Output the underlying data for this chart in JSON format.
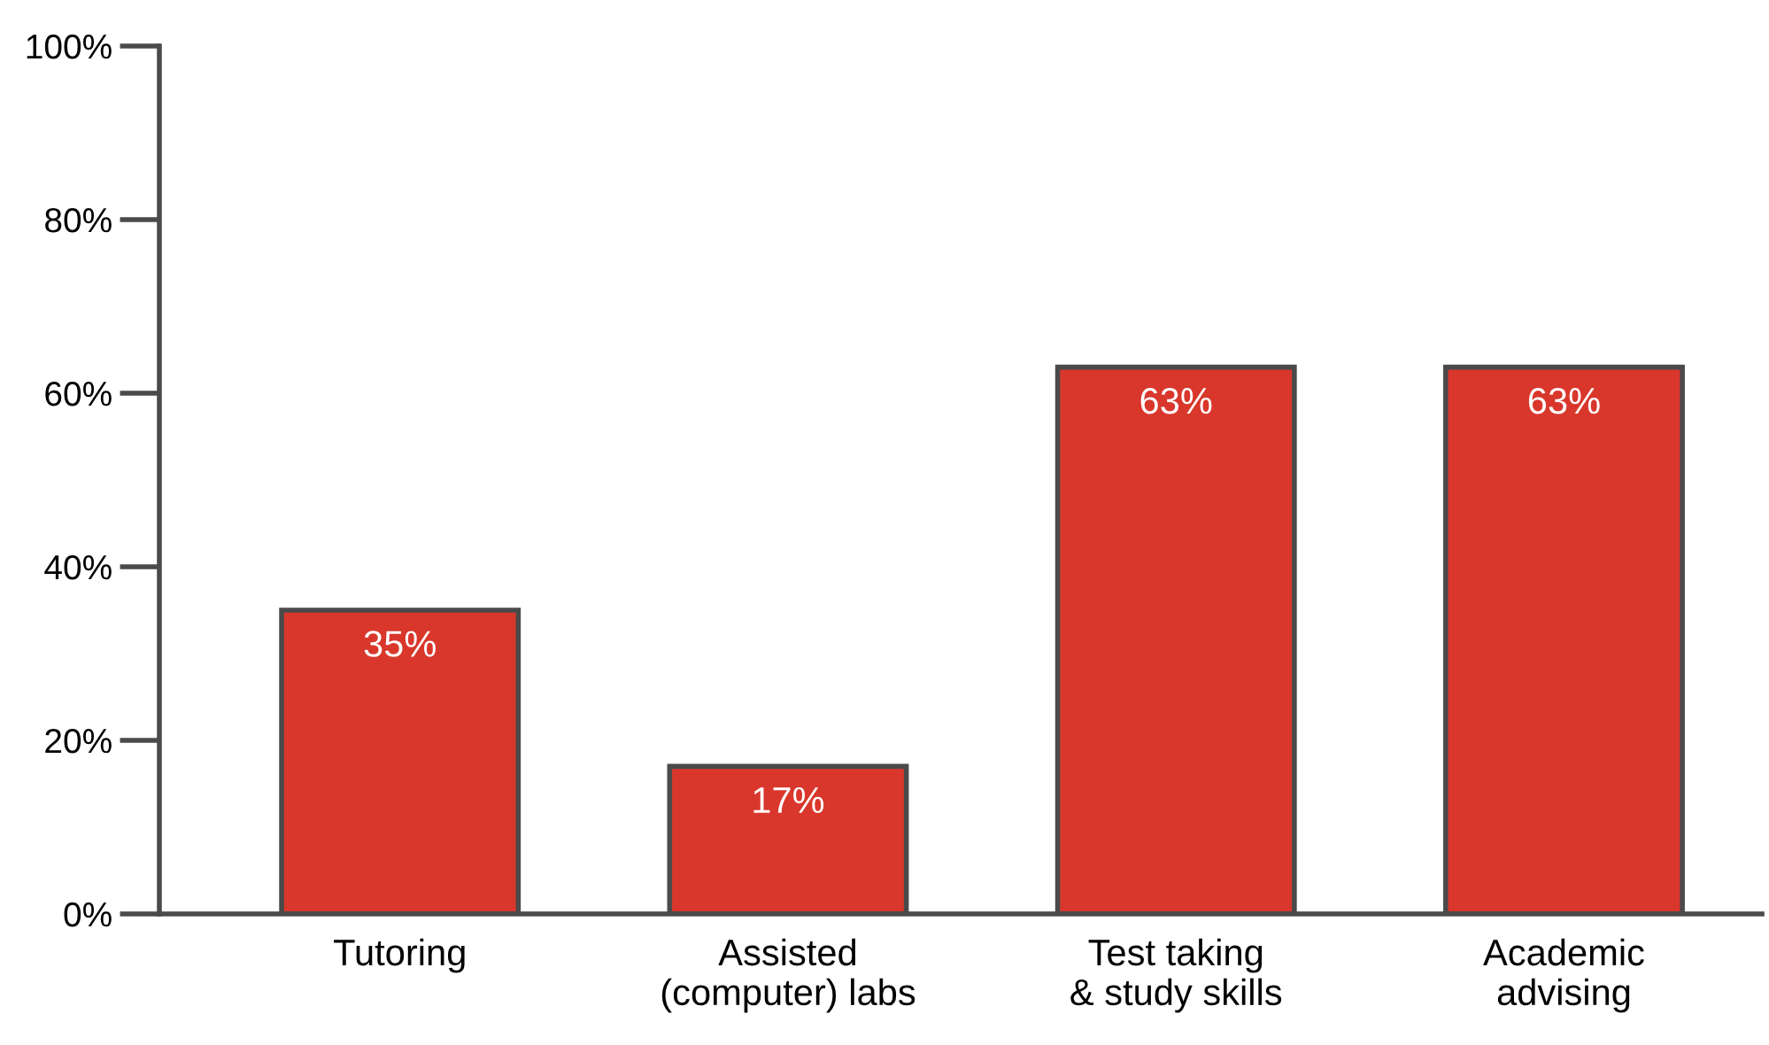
{
  "chart_data": {
    "type": "bar",
    "categories": [
      "Tutoring",
      "Assisted\n(computer) labs",
      "Test taking\n& study skills",
      "Academic\nadvising"
    ],
    "values": [
      35,
      17,
      63,
      63
    ],
    "value_labels": [
      "35%",
      "17%",
      "63%",
      "63%"
    ],
    "color": "#d9372c",
    "ylim": [
      0,
      100
    ],
    "yticks": [
      {
        "value": 0,
        "label": "0%"
      },
      {
        "value": 20,
        "label": "20%"
      },
      {
        "value": 40,
        "label": "40%"
      },
      {
        "value": 60,
        "label": "60%"
      },
      {
        "value": 80,
        "label": "80%"
      },
      {
        "value": 100,
        "label": "100%"
      }
    ],
    "grid": false
  }
}
